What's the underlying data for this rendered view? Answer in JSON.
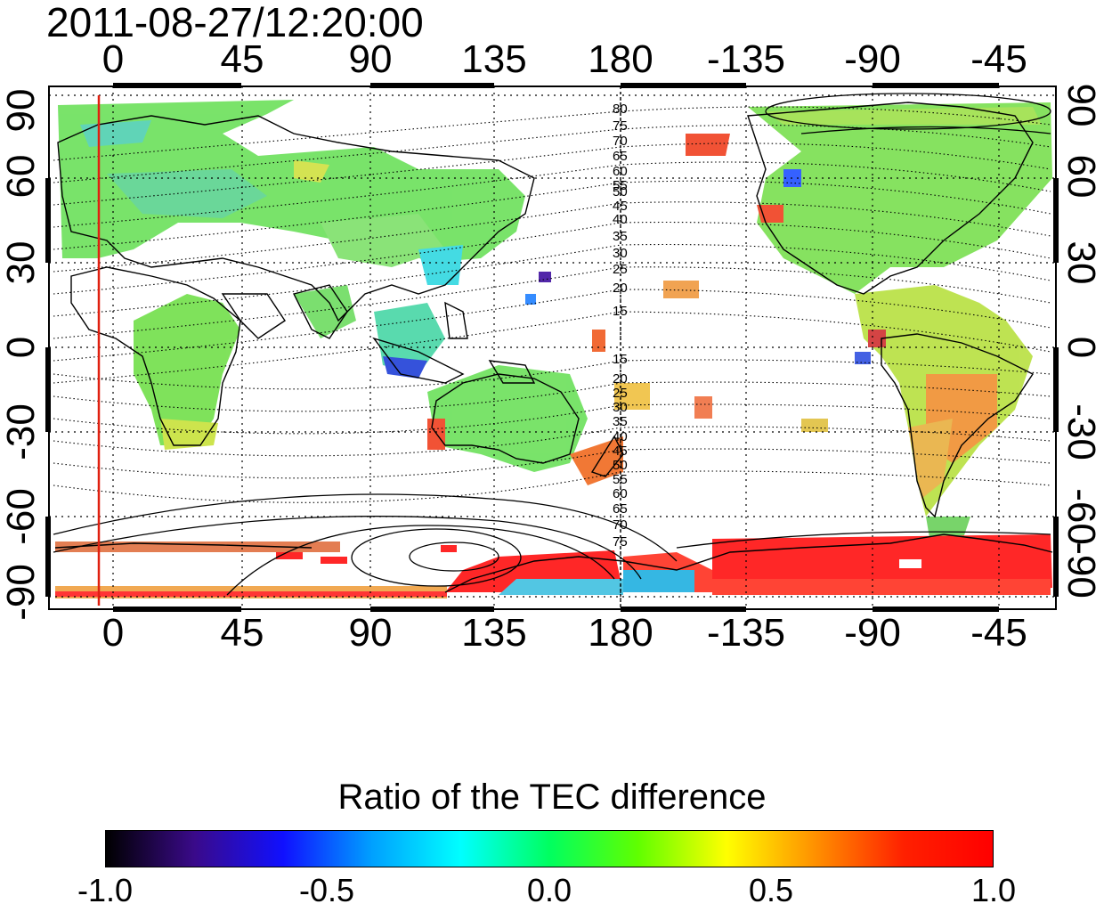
{
  "timestamp": "2011-08-27/12:20:00",
  "longitude_ticks": [
    "0",
    "45",
    "90",
    "135",
    "180",
    "-135",
    "-90",
    "-45"
  ],
  "latitude_ticks": [
    "90",
    "60",
    "30",
    "0",
    "-30",
    "-60",
    "-90"
  ],
  "contour_labels_north": [
    "80",
    "75",
    "70",
    "65",
    "60",
    "55",
    "50",
    "45",
    "40",
    "35",
    "30",
    "25",
    "20",
    "15"
  ],
  "contour_labels_south": [
    "15",
    "20",
    "25",
    "30",
    "35",
    "40",
    "45",
    "50",
    "55",
    "60",
    "65",
    "70",
    "75"
  ],
  "reference_meridian_color": "#e02010",
  "colorbar": {
    "title": "Ratio of the TEC difference",
    "min": -1.0,
    "max": 1.0,
    "labels": [
      "-1.0",
      "-0.5",
      "0.0",
      "0.5",
      "1.0"
    ],
    "gradient_colors": [
      "#000000",
      "#3a0a8a",
      "#1010ff",
      "#00a0ff",
      "#00ffff",
      "#00ff60",
      "#60ff00",
      "#ffff00",
      "#ff9000",
      "#ff2000",
      "#ff0000"
    ]
  }
}
